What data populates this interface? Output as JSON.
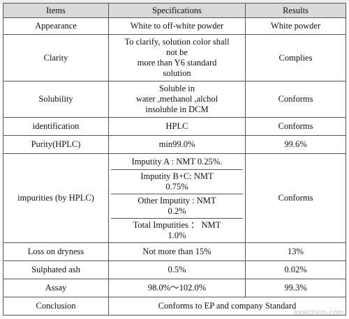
{
  "header": {
    "items": "Items",
    "specifications": "Specifications",
    "results": "Results"
  },
  "rows": [
    {
      "item": "Appearance",
      "spec": "White to off-white powder",
      "result": "White powder"
    },
    {
      "item": "Clarity",
      "spec": "To clarify, solution color shall\nnot be\nmore than Y6 standard\nsolution",
      "result": "Complies"
    },
    {
      "item": "Solubility",
      "spec": "Soluble in\nwater ,methanol ,alchol\ninsoluble in DCM",
      "result": "Conforms"
    },
    {
      "item": "identification",
      "spec": "HPLC",
      "result": "Conforms"
    },
    {
      "item": "Purity(HPLC)",
      "spec": "min99.0%",
      "result": "99.6%"
    }
  ],
  "impurities": {
    "item": "impurities (by HPLC)",
    "specs": [
      "Imputity A : NMT 0.25%.",
      "Imputity B+C: NMT\n0.75%",
      "Other Imputity : NMT\n0.2%",
      "Total Imputities ： NMT\n1.0%"
    ],
    "result": "Conforms"
  },
  "rows2": [
    {
      "item": "Loss on dryness",
      "spec": "Not more than 15%",
      "result": "13%"
    },
    {
      "item": "Sulphated ash",
      "spec": "0.5%",
      "result": "0.02%"
    },
    {
      "item": "Assay",
      "spec": "98.0%～102.0%",
      "result": "99.3%"
    }
  ],
  "conclusion": {
    "item": "Conclusion",
    "text": "Conforms to EP and company Standard"
  },
  "watermark": "lookchem.com"
}
